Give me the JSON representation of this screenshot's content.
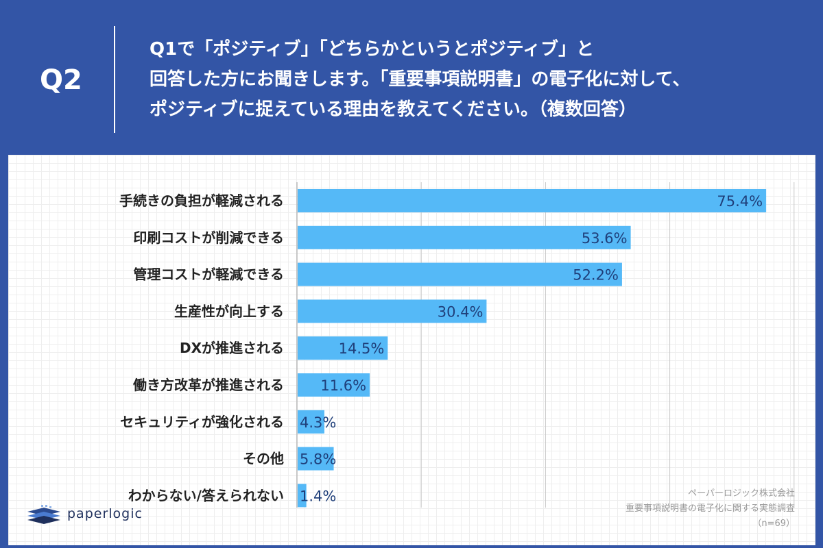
{
  "header": {
    "qlabel": "Q2",
    "question_lines": [
      "Q1で「ポジティブ」「どちらかというとポジティブ」と",
      "回答した方にお聞きします。「重要事項説明書」の電子化に対して、",
      "ポジティブに捉えている理由を教えてください。（複数回答）"
    ]
  },
  "chart_data": {
    "type": "bar",
    "orientation": "horizontal",
    "categories": [
      "手続きの負担が軽減される",
      "印刷コストが削減できる",
      "管理コストが軽減できる",
      "生産性が向上する",
      "DXが推進される",
      "働き方改革が推進される",
      "セキュリティが強化される",
      "その他",
      "わからない/答えられない"
    ],
    "values": [
      75.4,
      53.6,
      52.2,
      30.4,
      14.5,
      11.6,
      4.3,
      5.8,
      1.4
    ],
    "value_labels": [
      "75.4%",
      "53.6%",
      "52.2%",
      "30.4%",
      "14.5%",
      "11.6%",
      "4.3%",
      "5.8%",
      "1.4%"
    ],
    "xlim": [
      0,
      80
    ],
    "gridlines": [
      0,
      20,
      40,
      60,
      80
    ],
    "grid": true,
    "bar_color": "#55b9f7",
    "label_color": "#1f3f7a"
  },
  "credit": {
    "company": "ペーパーロジック株式会社",
    "survey": "重要事項説明書の電子化に関する実態調査",
    "n": "（n=69）"
  },
  "logo": {
    "text": "paperlogic"
  },
  "colors": {
    "background": "#3355a6",
    "panel": "#ffffff"
  }
}
